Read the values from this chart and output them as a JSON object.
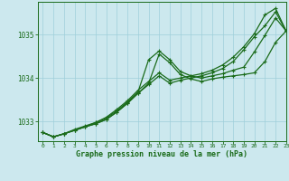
{
  "title": "Graphe pression niveau de la mer (hPa)",
  "bg_color": "#cce8ee",
  "line_color": "#1a6b1a",
  "grid_color": "#9fcfda",
  "xlim": [
    -0.5,
    23
  ],
  "ylim": [
    1032.55,
    1035.75
  ],
  "yticks": [
    1033,
    1034,
    1035
  ],
  "xticks": [
    0,
    1,
    2,
    3,
    4,
    5,
    6,
    7,
    8,
    9,
    10,
    11,
    12,
    13,
    14,
    15,
    16,
    17,
    18,
    19,
    20,
    21,
    22,
    23
  ],
  "series": [
    {
      "x": [
        0,
        1,
        2,
        3,
        4,
        5,
        6,
        7,
        8,
        9,
        10,
        11,
        12,
        13,
        14,
        15,
        16,
        17,
        18,
        19,
        20,
        21,
        22,
        23
      ],
      "y": [
        1032.75,
        1032.65,
        1032.72,
        1032.8,
        1032.88,
        1032.95,
        1033.05,
        1033.22,
        1033.42,
        1033.65,
        1033.88,
        1034.55,
        1034.35,
        1034.08,
        1033.98,
        1033.92,
        1033.98,
        1034.02,
        1034.05,
        1034.08,
        1034.12,
        1034.38,
        1034.82,
        1035.08
      ]
    },
    {
      "x": [
        0,
        1,
        2,
        3,
        4,
        5,
        6,
        7,
        8,
        9,
        10,
        11,
        12,
        13,
        14,
        15,
        16,
        17,
        18,
        19,
        20,
        21,
        22,
        23
      ],
      "y": [
        1032.75,
        1032.65,
        1032.72,
        1032.8,
        1032.88,
        1032.98,
        1033.08,
        1033.25,
        1033.45,
        1033.68,
        1034.42,
        1034.62,
        1034.42,
        1034.15,
        1034.05,
        1034.0,
        1034.05,
        1034.1,
        1034.18,
        1034.25,
        1034.6,
        1034.98,
        1035.38,
        1035.08
      ]
    },
    {
      "x": [
        0,
        1,
        2,
        3,
        4,
        5,
        6,
        7,
        8,
        9,
        10,
        11,
        12,
        13,
        14,
        15,
        16,
        17,
        18,
        19,
        20,
        21,
        22,
        23
      ],
      "y": [
        1032.75,
        1032.65,
        1032.72,
        1032.8,
        1032.88,
        1032.95,
        1033.05,
        1033.22,
        1033.42,
        1033.65,
        1033.85,
        1034.05,
        1033.88,
        1033.95,
        1034.0,
        1034.05,
        1034.12,
        1034.22,
        1034.38,
        1034.65,
        1034.95,
        1035.2,
        1035.52,
        1035.08
      ]
    },
    {
      "x": [
        0,
        1,
        2,
        3,
        4,
        5,
        6,
        7,
        8,
        9,
        10,
        11,
        12,
        13,
        14,
        15,
        16,
        17,
        18,
        19,
        20,
        21,
        22,
        23
      ],
      "y": [
        1032.75,
        1032.65,
        1032.72,
        1032.82,
        1032.9,
        1032.98,
        1033.1,
        1033.28,
        1033.48,
        1033.72,
        1033.92,
        1034.12,
        1033.95,
        1034.0,
        1034.05,
        1034.1,
        1034.18,
        1034.3,
        1034.48,
        1034.72,
        1035.02,
        1035.45,
        1035.6,
        1035.08
      ]
    }
  ]
}
